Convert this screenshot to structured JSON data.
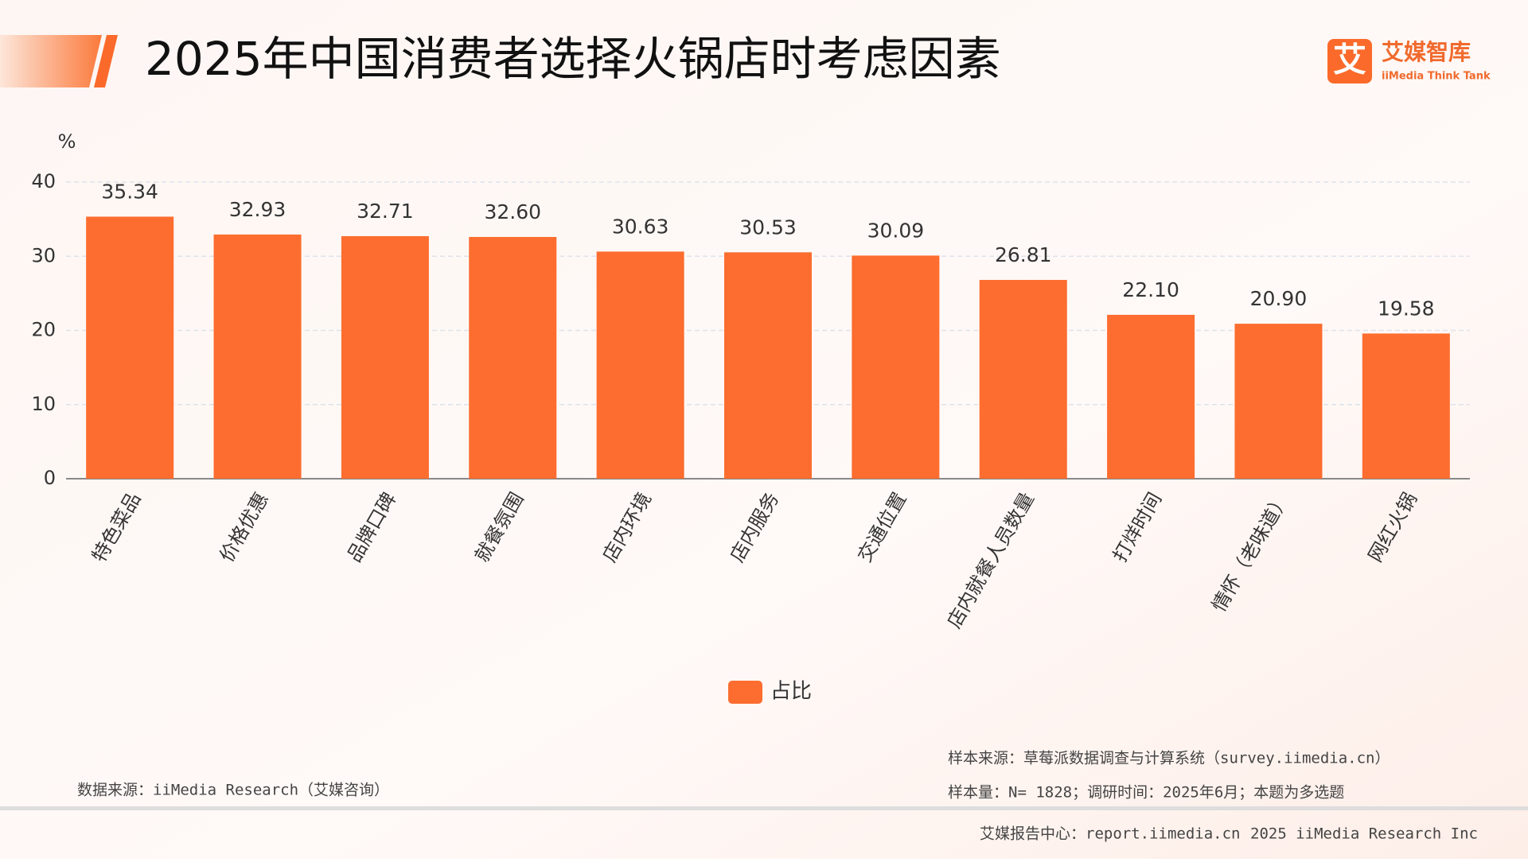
{
  "header": {
    "title": "2025年中国消费者选择火锅店时考虑因素",
    "logo_icon": "艾",
    "logo_name": "艾媒智库",
    "logo_sub": "iiMedia Think Tank"
  },
  "chart_data": {
    "type": "bar",
    "y_label": "%",
    "categories": [
      "特色菜品",
      "价格优惠",
      "品牌口碑",
      "就餐氛围",
      "店内环境",
      "店内服务",
      "交通位置",
      "店内就餐人员数量",
      "打烊时间",
      "情怀（老味道）",
      "网红火锅"
    ],
    "series": [
      {
        "name": "占比",
        "color": "#fd6d2f",
        "values": [
          35.34,
          32.93,
          32.71,
          32.6,
          30.63,
          30.53,
          30.09,
          26.81,
          22.1,
          20.9,
          19.58
        ],
        "value_labels": [
          "35.34",
          "32.93",
          "32.71",
          "32.60",
          "30.63",
          "30.53",
          "30.09",
          "26.81",
          "22.10",
          "20.90",
          "19.58"
        ]
      }
    ],
    "ylim": [
      0,
      40
    ],
    "yticks": [
      0,
      10,
      20,
      30,
      40
    ],
    "grid": true
  },
  "footer": {
    "sample_source": "样本来源：草莓派数据调查与计算系统（survey.iimedia.cn）",
    "sample_size": "样本量：N= 1828；调研时间：2025年6月；本题为多选题",
    "data_source": "数据来源：iiMedia Research（艾媒咨询）",
    "report_center": "艾媒报告中心：report.iimedia.cn",
    "copyright": "2025 iiMedia Research Inc"
  }
}
